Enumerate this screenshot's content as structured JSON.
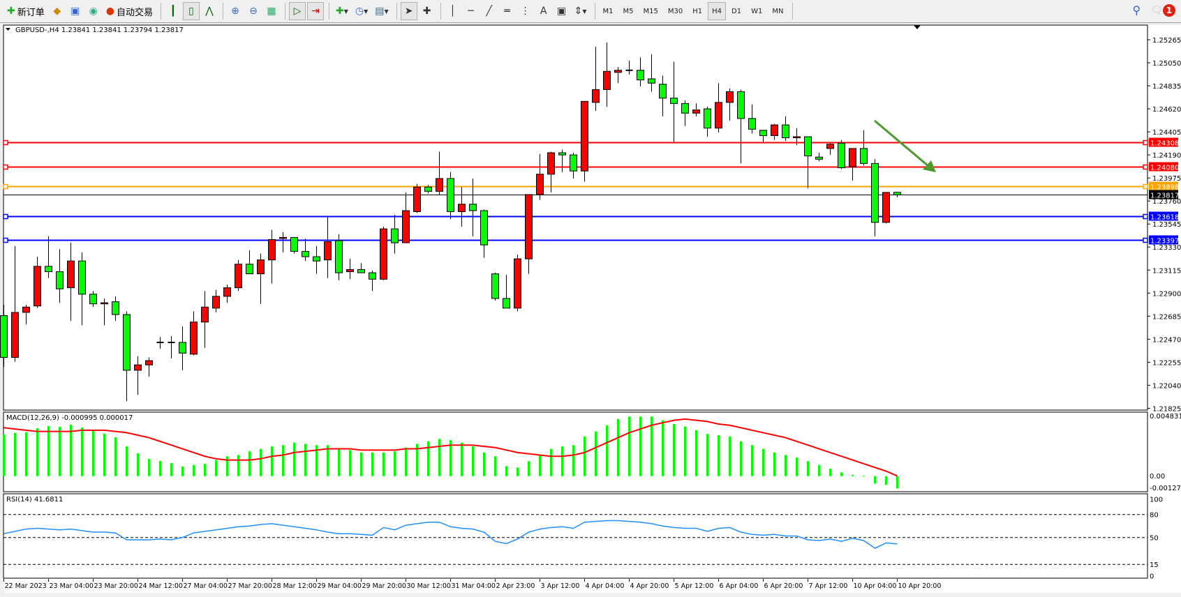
{
  "toolbar": {
    "new_order": "新订单",
    "auto_trading": "自动交易",
    "periods": [
      "M1",
      "M5",
      "M15",
      "M30",
      "H1",
      "H4",
      "D1",
      "W1",
      "MN"
    ],
    "active_period": "H4",
    "notification_count": "1",
    "icons": [
      "new-order-icon",
      "market-watch-icon",
      "navigator-icon",
      "signal-icon",
      "auto-trading-icon",
      "bar-chart-icon",
      "candlestick-icon",
      "line-chart-icon",
      "zoom-in-icon",
      "zoom-out-icon",
      "tile-windows-icon",
      "autoscroll-icon",
      "chart-shift-icon",
      "indicators-icon",
      "periods-clock-icon",
      "templates-icon",
      "cursor-icon",
      "crosshair-icon",
      "vertical-line-icon",
      "horizontal-line-icon",
      "trendline-icon",
      "equidistant-channel-icon",
      "fibonacci-icon",
      "text-icon",
      "text-label-icon",
      "arrows-icon"
    ]
  },
  "chart_header": "GBPUSD-,H4  1.23841 1.23841 1.23794 1.23817",
  "macd_header": "MACD(12,26,9) -0.000995 0.000017",
  "rsi_header": "RSI(14) 41.6811",
  "colors": {
    "bull": "#ff0000",
    "bear": "#00ff00",
    "macd_hist": "#00ff00",
    "macd_signal": "#ff0000",
    "rsi": "#1e90ff",
    "arrow": "#4f9a2e"
  },
  "chart_data": [
    {
      "type": "candlestick",
      "symbol": "GBPUSD-",
      "timeframe": "H4",
      "ylim": [
        1.21825,
        1.2548
      ],
      "price_ticks": [
        "1.25265",
        "1.25050",
        "1.24835",
        "1.24620",
        "1.24405",
        "1.24190",
        "1.23975",
        "1.23760",
        "1.23545",
        "1.23330",
        "1.23115",
        "1.22900",
        "1.22685",
        "1.22470",
        "1.22255",
        "1.22040",
        "1.21825"
      ],
      "time_labels": [
        "22 Mar 2023",
        "23 Mar 04:00",
        "23 Mar 20:00",
        "24 Mar 12:00",
        "27 Mar 04:00",
        "27 Mar 20:00",
        "28 Mar 12:00",
        "29 Mar 04:00",
        "29 Mar 20:00",
        "30 Mar 12:00",
        "31 Mar 04:00",
        "2 Apr 23:00",
        "3 Apr 12:00",
        "4 Apr 04:00",
        "4 Apr 20:00",
        "5 Apr 12:00",
        "6 Apr 04:00",
        "6 Apr 20:00",
        "7 Apr 12:00",
        "10 Apr 04:00",
        "10 Apr 20:00"
      ],
      "ohlc_fields": [
        "open",
        "high",
        "low",
        "close"
      ],
      "candles": [
        [
          1.2269,
          1.2279,
          1.2221,
          1.223
        ],
        [
          1.223,
          1.2334,
          1.2226,
          1.2272
        ],
        [
          1.2272,
          1.2279,
          1.2261,
          1.2277
        ],
        [
          1.2278,
          1.2324,
          1.2276,
          1.2315
        ],
        [
          1.2315,
          1.2343,
          1.2304,
          1.231
        ],
        [
          1.231,
          1.2331,
          1.2281,
          1.2294
        ],
        [
          1.2295,
          1.2337,
          1.2264,
          1.232
        ],
        [
          1.232,
          1.2328,
          1.226,
          1.2289
        ],
        [
          1.2289,
          1.2292,
          1.2277,
          1.228
        ],
        [
          1.228,
          1.2285,
          1.226,
          1.2281
        ],
        [
          1.2282,
          1.2287,
          1.2264,
          1.227
        ],
        [
          1.227,
          1.2273,
          1.2189,
          1.2218
        ],
        [
          1.2218,
          1.2231,
          1.2195,
          1.2223
        ],
        [
          1.2223,
          1.223,
          1.2212,
          1.2227
        ],
        [
          1.2244,
          1.2249,
          1.2238,
          1.2244
        ],
        [
          1.2244,
          1.225,
          1.2229,
          1.2244
        ],
        [
          1.2244,
          1.2259,
          1.2218,
          1.2234
        ],
        [
          1.2233,
          1.2273,
          1.2232,
          1.2263
        ],
        [
          1.2263,
          1.2292,
          1.2239,
          1.2277
        ],
        [
          1.2276,
          1.2293,
          1.2272,
          1.2287
        ],
        [
          1.2287,
          1.2298,
          1.2281,
          1.2295
        ],
        [
          1.2295,
          1.2321,
          1.2292,
          1.2317
        ],
        [
          1.2317,
          1.233,
          1.2308,
          1.2308
        ],
        [
          1.2308,
          1.2327,
          1.228,
          1.2321
        ],
        [
          1.2321,
          1.2349,
          1.2299,
          1.234
        ],
        [
          1.2341,
          1.2347,
          1.2328,
          1.2342
        ],
        [
          1.2342,
          1.2342,
          1.2327,
          1.2329
        ],
        [
          1.2329,
          1.2341,
          1.232,
          1.2324
        ],
        [
          1.2324,
          1.2334,
          1.2308,
          1.232
        ],
        [
          1.2321,
          1.2362,
          1.2304,
          1.2338
        ],
        [
          1.2339,
          1.2345,
          1.2302,
          1.2309
        ],
        [
          1.231,
          1.2322,
          1.2303,
          1.2312
        ],
        [
          1.2312,
          1.2318,
          1.2309,
          1.2309
        ],
        [
          1.2309,
          1.2311,
          1.2292,
          1.2303
        ],
        [
          1.2303,
          1.2352,
          1.2302,
          1.235
        ],
        [
          1.235,
          1.2363,
          1.2327,
          1.2337
        ],
        [
          1.2337,
          1.2384,
          1.2337,
          1.2367
        ],
        [
          1.2366,
          1.2392,
          1.2365,
          1.2389
        ],
        [
          1.2389,
          1.2391,
          1.2383,
          1.2385
        ],
        [
          1.2385,
          1.2422,
          1.2382,
          1.2397
        ],
        [
          1.2397,
          1.2403,
          1.2359,
          1.2366
        ],
        [
          1.2366,
          1.2389,
          1.2352,
          1.2373
        ],
        [
          1.2373,
          1.2397,
          1.2343,
          1.2367
        ],
        [
          1.2367,
          1.2368,
          1.2323,
          1.2335
        ],
        [
          1.2308,
          1.2309,
          1.2283,
          1.2285
        ],
        [
          1.2285,
          1.2307,
          1.2276,
          1.2276
        ],
        [
          1.2276,
          1.2326,
          1.2273,
          1.2322
        ],
        [
          1.2322,
          1.2382,
          1.2308,
          1.2382
        ],
        [
          1.2382,
          1.242,
          1.2377,
          1.2401
        ],
        [
          1.2401,
          1.2422,
          1.2384,
          1.2421
        ],
        [
          1.2421,
          1.2424,
          1.2403,
          1.2419
        ],
        [
          1.2419,
          1.2421,
          1.2397,
          1.2404
        ],
        [
          1.2404,
          1.2469,
          1.2394,
          1.2469
        ],
        [
          1.2468,
          1.252,
          1.246,
          1.248
        ],
        [
          1.248,
          1.2524,
          1.2464,
          1.2497
        ],
        [
          1.2496,
          1.2501,
          1.2486,
          1.2498
        ],
        [
          1.2498,
          1.2507,
          1.2494,
          1.2498
        ],
        [
          1.2498,
          1.251,
          1.2483,
          1.2489
        ],
        [
          1.249,
          1.2513,
          1.2478,
          1.2486
        ],
        [
          1.2485,
          1.2493,
          1.2455,
          1.2472
        ],
        [
          1.2472,
          1.2506,
          1.2431,
          1.2467
        ],
        [
          1.2467,
          1.247,
          1.2446,
          1.2458
        ],
        [
          1.2458,
          1.2467,
          1.2455,
          1.2461
        ],
        [
          1.2462,
          1.2464,
          1.2436,
          1.2444
        ],
        [
          1.2444,
          1.2486,
          1.244,
          1.2468
        ],
        [
          1.2468,
          1.2481,
          1.2451,
          1.2478
        ],
        [
          1.2478,
          1.248,
          1.2411,
          1.2453
        ],
        [
          1.2453,
          1.2466,
          1.2439,
          1.2443
        ],
        [
          1.2442,
          1.2442,
          1.2431,
          1.2437
        ],
        [
          1.2437,
          1.2448,
          1.2433,
          1.2447
        ],
        [
          1.2447,
          1.2455,
          1.2432,
          1.2435
        ],
        [
          1.2435,
          1.2444,
          1.2428,
          1.2436
        ],
        [
          1.2436,
          1.2436,
          1.2388,
          1.2418
        ],
        [
          1.2417,
          1.2421,
          1.2413,
          1.2415
        ],
        [
          1.2425,
          1.243,
          1.2419,
          1.2429
        ],
        [
          1.243,
          1.2433,
          1.2406,
          1.2407
        ],
        [
          1.2408,
          1.2425,
          1.2395,
          1.2425
        ],
        [
          1.2425,
          1.2442,
          1.2409,
          1.2411
        ],
        [
          1.2411,
          1.2415,
          1.2343,
          1.2356
        ],
        [
          1.2356,
          1.2384,
          1.2355,
          1.2384
        ],
        [
          1.23841,
          1.23841,
          1.23794,
          1.23817
        ]
      ],
      "horizontal_lines": [
        {
          "price": "1.24308",
          "color": "#ff0000"
        },
        {
          "price": "1.24080",
          "color": "#ff0000"
        },
        {
          "price": "1.23898",
          "color": "#ffa500"
        },
        {
          "price": "1.23817",
          "color": "#000000",
          "bid": true
        },
        {
          "price": "1.23618",
          "color": "#0000ff"
        },
        {
          "price": "1.23397",
          "color": "#0000ff"
        }
      ],
      "annotation": {
        "type": "arrow",
        "direction": "down-right",
        "color": "#4f9a2e"
      }
    },
    {
      "type": "bar+line",
      "indicator": "MACD(12,26,9)",
      "ylim": [
        -0.001273,
        0.004831
      ],
      "tick_labels": [
        "0.004831",
        "0.00",
        "-0.001273"
      ],
      "histogram": [
        0.00335,
        0.00348,
        0.00354,
        0.00386,
        0.00403,
        0.00397,
        0.00414,
        0.00391,
        0.00375,
        0.00343,
        0.00313,
        0.0024,
        0.00184,
        0.00139,
        0.00122,
        0.00105,
        0.00077,
        0.0009,
        0.00099,
        0.0013,
        0.0016,
        0.0017,
        0.002,
        0.0022,
        0.0024,
        0.0025,
        0.0027,
        0.0026,
        0.0025,
        0.0025,
        0.0022,
        0.0021,
        0.0019,
        0.0019,
        0.0019,
        0.002,
        0.0023,
        0.0026,
        0.0028,
        0.003,
        0.0029,
        0.0027,
        0.0024,
        0.0019,
        0.0016,
        0.0008,
        0.0007,
        0.0012,
        0.0017,
        0.0022,
        0.0024,
        0.0025,
        0.0032,
        0.0036,
        0.0041,
        0.0046,
        0.0048,
        0.0048,
        0.0048,
        0.0045,
        0.0042,
        0.004,
        0.0037,
        0.0034,
        0.0033,
        0.0032,
        0.0028,
        0.0025,
        0.0022,
        0.0019,
        0.0017,
        0.0015,
        0.0012,
        0.0009,
        0.0006,
        0.0003,
        0.0001,
        2e-05,
        -0.0006,
        -0.0007,
        -0.000995
      ],
      "signal": [
        0.0039,
        0.0038,
        0.0037,
        0.0036,
        0.0036,
        0.0036,
        0.0036,
        0.0037,
        0.0037,
        0.0037,
        0.0036,
        0.0035,
        0.0033,
        0.0031,
        0.0028,
        0.0025,
        0.0022,
        0.0019,
        0.0016,
        0.0014,
        0.0013,
        0.0013,
        0.0013,
        0.0014,
        0.0016,
        0.0017,
        0.0019,
        0.002,
        0.0021,
        0.0022,
        0.0022,
        0.0022,
        0.0021,
        0.0021,
        0.0021,
        0.0021,
        0.0022,
        0.0022,
        0.0023,
        0.0024,
        0.0025,
        0.0025,
        0.0025,
        0.0024,
        0.0023,
        0.0021,
        0.0019,
        0.0018,
        0.0017,
        0.0016,
        0.0016,
        0.0017,
        0.0019,
        0.0023,
        0.0027,
        0.0031,
        0.0035,
        0.0038,
        0.0041,
        0.0043,
        0.0045,
        0.0046,
        0.0045,
        0.0044,
        0.0042,
        0.0041,
        0.0039,
        0.0037,
        0.0035,
        0.0033,
        0.0031,
        0.0028,
        0.0025,
        0.0022,
        0.0019,
        0.0016,
        0.0013,
        0.001,
        0.0007,
        0.0004,
        1.7e-05
      ]
    },
    {
      "type": "line",
      "indicator": "RSI(14)",
      "ylim": [
        0,
        100
      ],
      "levels": [
        80,
        50,
        15
      ],
      "tick_labels": [
        "100",
        "80",
        "50",
        "15",
        "0"
      ],
      "values": [
        55,
        58,
        61,
        62,
        61,
        60,
        61,
        59,
        57,
        57,
        56,
        47,
        47,
        47,
        48,
        47,
        50,
        56,
        58,
        60,
        62,
        64,
        65,
        67,
        68,
        66,
        64,
        62,
        60,
        57,
        55,
        55,
        54,
        53,
        63,
        60,
        66,
        68,
        70,
        70,
        64,
        62,
        61,
        57,
        45,
        42,
        48,
        57,
        61,
        63,
        64,
        62,
        70,
        71,
        72,
        72,
        71,
        70,
        68,
        65,
        63,
        62,
        62,
        58,
        62,
        63,
        57,
        54,
        53,
        54,
        52,
        52,
        47,
        46,
        48,
        45,
        49,
        46,
        36,
        43,
        41.6811
      ]
    }
  ]
}
